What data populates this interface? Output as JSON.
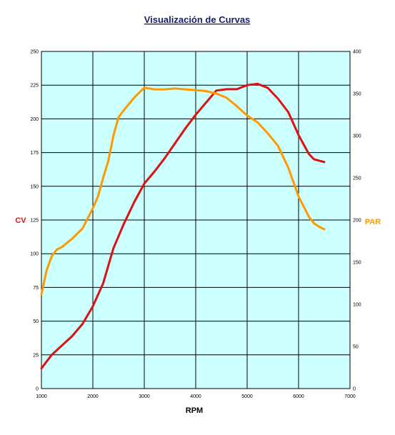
{
  "colors": {
    "plot_bg": "#ccffff",
    "grid": "#000000",
    "cv": "#dd1111",
    "par": "#ff9900",
    "title": "#1a1a6e"
  },
  "chart_data": {
    "type": "line",
    "title": "Visualización de Curvas",
    "xlabel": "RPM",
    "ylabel": "CV",
    "y2label": "PAR",
    "xlim": [
      1000,
      7000
    ],
    "ylim": [
      0,
      250
    ],
    "y2lim": [
      0,
      400
    ],
    "grid": true,
    "x_ticks": [
      "1000",
      "2000",
      "3000",
      "4000",
      "5000",
      "6000",
      "7000"
    ],
    "y_ticks": [
      "0",
      "25",
      "50",
      "75",
      "100",
      "125",
      "150",
      "175",
      "200",
      "225",
      "250"
    ],
    "y2_ticks": [
      "0",
      "50",
      "100",
      "150",
      "200",
      "250",
      "300",
      "350",
      "400"
    ],
    "series": [
      {
        "name": "CV",
        "axis": "left",
        "x": [
          1000,
          1200,
          1400,
          1600,
          1800,
          2000,
          2200,
          2400,
          2600,
          2800,
          3000,
          3200,
          3400,
          3600,
          3800,
          4000,
          4200,
          4400,
          4600,
          4800,
          5000,
          5200,
          5400,
          5600,
          5800,
          6000,
          6200,
          6300,
          6400,
          6500
        ],
        "values": [
          15,
          25,
          32,
          39,
          48,
          61,
          78,
          104,
          122,
          138,
          152,
          161,
          171,
          182,
          193,
          203,
          212,
          221,
          222,
          222,
          225,
          226,
          223,
          215,
          205,
          188,
          174,
          170,
          169,
          168
        ]
      },
      {
        "name": "PAR",
        "axis": "right",
        "x": [
          1000,
          1100,
          1200,
          1300,
          1400,
          1600,
          1800,
          2000,
          2100,
          2200,
          2300,
          2400,
          2500,
          2600,
          2800,
          3000,
          3200,
          3400,
          3600,
          3800,
          4000,
          4200,
          4400,
          4600,
          4800,
          5000,
          5200,
          5400,
          5600,
          5800,
          6000,
          6200,
          6300,
          6400,
          6500
        ],
        "values": [
          112,
          140,
          157,
          165,
          168,
          178,
          190,
          214,
          228,
          250,
          270,
          300,
          322,
          330,
          345,
          357,
          355,
          355,
          356,
          355,
          354,
          353,
          350,
          345,
          335,
          324,
          316,
          303,
          288,
          262,
          228,
          204,
          196,
          192,
          189
        ]
      }
    ]
  }
}
